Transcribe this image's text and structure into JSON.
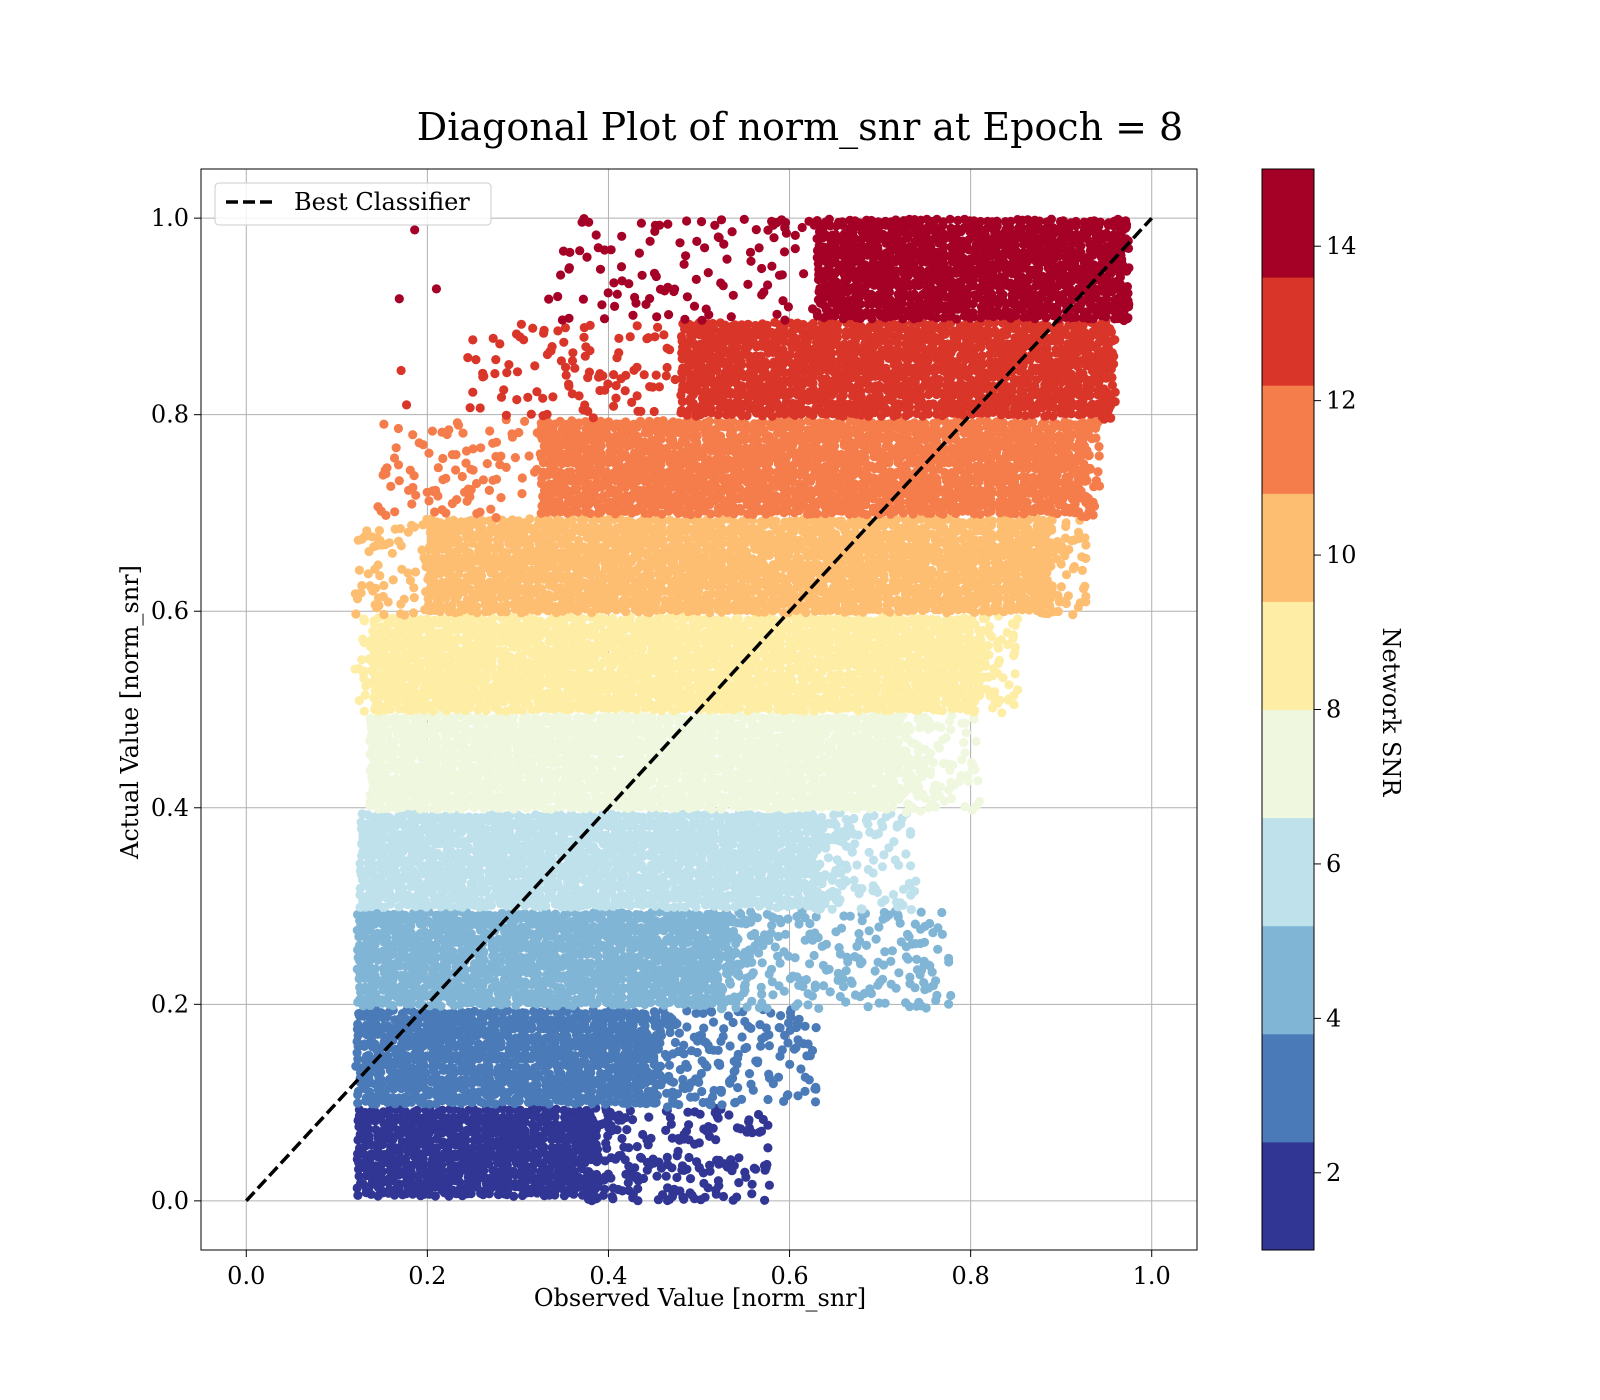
{
  "chart_data": {
    "type": "scatter",
    "title": "Diagonal Plot of norm_snr at Epoch = 8",
    "xlabel": "Observed Value [norm_snr]",
    "ylabel": "Actual Value [norm_snr]",
    "xlim": [
      -0.05,
      1.05
    ],
    "ylim": [
      -0.05,
      1.05
    ],
    "x_ticks": [
      "0.0",
      "0.2",
      "0.4",
      "0.6",
      "0.8",
      "1.0"
    ],
    "y_ticks": [
      "0.0",
      "0.2",
      "0.4",
      "0.6",
      "0.8",
      "1.0"
    ],
    "grid": true,
    "legend": {
      "placement": "top-left",
      "entries": [
        "Best Classifier"
      ]
    },
    "reference_line": {
      "name": "Best Classifier",
      "style": "dashed",
      "color": "#000000",
      "x": [
        0.0,
        1.0
      ],
      "y": [
        0.0,
        1.0
      ]
    },
    "colorbar": {
      "label": "Network SNR",
      "range": [
        1,
        15
      ],
      "tick_values": [
        2,
        4,
        6,
        8,
        10,
        12,
        14
      ],
      "tick_labels": [
        "2",
        "4",
        "6",
        "8",
        "10",
        "12",
        "14"
      ],
      "bins": [
        {
          "from": 1.0,
          "to": 2.4,
          "color": "#313695"
        },
        {
          "from": 2.4,
          "to": 3.8,
          "color": "#4a7ab7"
        },
        {
          "from": 3.8,
          "to": 5.2,
          "color": "#81b5d6"
        },
        {
          "from": 5.2,
          "to": 6.6,
          "color": "#bee1ec"
        },
        {
          "from": 6.6,
          "to": 8.0,
          "color": "#eff8df"
        },
        {
          "from": 8.0,
          "to": 9.4,
          "color": "#feeea5"
        },
        {
          "from": 9.4,
          "to": 10.8,
          "color": "#fdbe72"
        },
        {
          "from": 10.8,
          "to": 12.2,
          "color": "#f57d4b"
        },
        {
          "from": 12.2,
          "to": 13.6,
          "color": "#d93529"
        },
        {
          "from": 13.6,
          "to": 15.0,
          "color": "#a50026"
        }
      ]
    },
    "bands": [
      {
        "y_range": [
          0.0,
          0.095
        ],
        "x_core": [
          0.122,
          0.378
        ],
        "x_sparse_max": 0.578,
        "color": "#313695"
      },
      {
        "y_range": [
          0.095,
          0.195
        ],
        "x_core": [
          0.122,
          0.448
        ],
        "x_sparse_max": 0.63,
        "color": "#4a7ab7"
      },
      {
        "y_range": [
          0.195,
          0.295
        ],
        "x_core": [
          0.122,
          0.52
        ],
        "x_sparse_max": 0.78,
        "color": "#81b5d6"
      },
      {
        "y_range": [
          0.295,
          0.395
        ],
        "x_core": [
          0.125,
          0.625
        ],
        "x_sparse_max": 0.74,
        "color": "#bee1ec"
      },
      {
        "y_range": [
          0.395,
          0.495
        ],
        "x_core": [
          0.136,
          0.72
        ],
        "x_sparse_max": 0.81,
        "color": "#eff8df"
      },
      {
        "y_range": [
          0.495,
          0.595
        ],
        "x_core": [
          0.139,
          0.8
        ],
        "x_sparse_max": 0.852,
        "color": "#feeea5"
      },
      {
        "y_range": [
          0.595,
          0.695
        ],
        "x_core": [
          0.2,
          0.88
        ],
        "x_sparse_max": 0.928,
        "color": "#fdbe72"
      },
      {
        "y_range": [
          0.695,
          0.795
        ],
        "x_core": [
          0.325,
          0.915
        ],
        "x_sparse_max": 0.943,
        "color": "#f57d4b"
      },
      {
        "y_range": [
          0.795,
          0.895
        ],
        "x_core": [
          0.48,
          0.945
        ],
        "x_sparse_max": 0.96,
        "color": "#d93529"
      },
      {
        "y_range": [
          0.895,
          1.0
        ],
        "x_core": [
          0.63,
          0.965
        ],
        "x_sparse_max": 0.975,
        "color": "#a50026"
      }
    ],
    "outliers": [
      {
        "x": 0.778,
        "y": 0.209,
        "color": "#81b5d6"
      },
      {
        "x": 0.628,
        "y": 0.114,
        "color": "#4a7ab7"
      },
      {
        "x": 0.575,
        "y": 0.037,
        "color": "#313695"
      },
      {
        "x": 0.553,
        "y": 0.07,
        "color": "#313695"
      },
      {
        "x": 0.685,
        "y": 0.26,
        "color": "#81b5d6"
      },
      {
        "x": 0.659,
        "y": 0.226,
        "color": "#81b5d6"
      },
      {
        "x": 0.848,
        "y": 0.505,
        "color": "#feeea5"
      },
      {
        "x": 0.852,
        "y": 0.52,
        "color": "#feeea5"
      },
      {
        "x": 0.9,
        "y": 0.648,
        "color": "#fdbe72"
      },
      {
        "x": 0.169,
        "y": 0.918,
        "color": "#a50026"
      },
      {
        "x": 0.186,
        "y": 0.988,
        "color": "#a50026"
      },
      {
        "x": 0.21,
        "y": 0.928,
        "color": "#a50026"
      },
      {
        "x": 0.171,
        "y": 0.845,
        "color": "#d93529"
      },
      {
        "x": 0.177,
        "y": 0.81,
        "color": "#d93529"
      },
      {
        "x": 0.121,
        "y": 0.137,
        "color": "#4a7ab7"
      },
      {
        "x": 0.942,
        "y": 0.758,
        "color": "#f57d4b"
      }
    ]
  }
}
